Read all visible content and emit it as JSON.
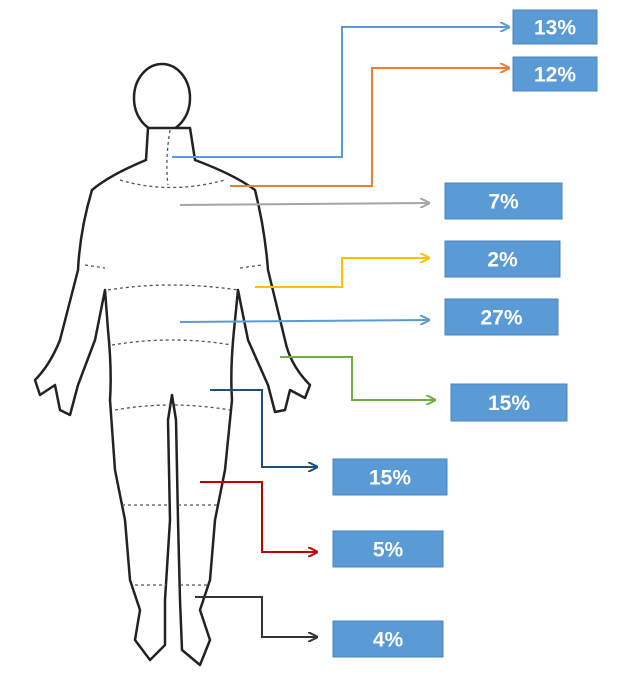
{
  "callouts": [
    {
      "label": "13%"
    },
    {
      "label": "12%"
    },
    {
      "label": "7%"
    },
    {
      "label": "2%"
    },
    {
      "label": "27%"
    },
    {
      "label": "15%"
    },
    {
      "label": "15%"
    },
    {
      "label": "5%"
    },
    {
      "label": "4%"
    }
  ]
}
